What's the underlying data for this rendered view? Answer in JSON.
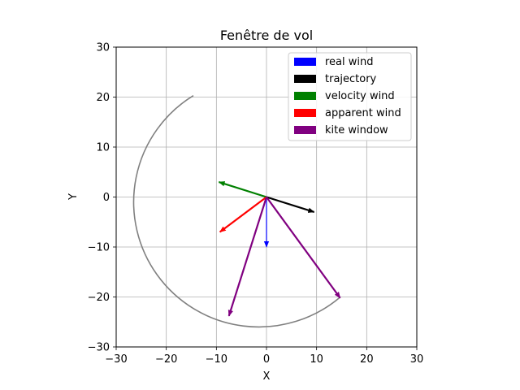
{
  "chart_data": {
    "type": "line",
    "title": "Fenêtre de vol",
    "xlabel": "X",
    "ylabel": "Y",
    "xlim": [
      -30,
      30
    ],
    "ylim": [
      -30,
      30
    ],
    "xticks": [
      -30,
      -20,
      -10,
      0,
      10,
      20,
      30
    ],
    "yticks": [
      -30,
      -20,
      -10,
      0,
      10,
      20,
      30
    ],
    "xtick_labels": [
      "−30",
      "−20",
      "−10",
      "0",
      "10",
      "20",
      "30"
    ],
    "ytick_labels": [
      "−30",
      "−20",
      "−10",
      "0",
      "10",
      "20",
      "30"
    ],
    "grid": true,
    "legend_position": "top-right",
    "arc": {
      "color": "#808080",
      "center": [
        0,
        0
      ],
      "radius": 25,
      "start": [
        14.5,
        -20.2
      ],
      "end": [
        -14.6,
        20.3
      ]
    },
    "series": [
      {
        "name": "real wind",
        "color": "#0000ff",
        "vectors": [
          {
            "from": [
              0,
              0
            ],
            "to": [
              0,
              -10
            ]
          }
        ]
      },
      {
        "name": "trajectory",
        "color": "#000000",
        "vectors": [
          {
            "from": [
              0,
              0
            ],
            "to": [
              9.5,
              -3
            ]
          }
        ]
      },
      {
        "name": "velocity wind",
        "color": "#008000",
        "vectors": [
          {
            "from": [
              0,
              0
            ],
            "to": [
              -9.5,
              3
            ]
          }
        ]
      },
      {
        "name": "apparent wind",
        "color": "#ff0000",
        "vectors": [
          {
            "from": [
              0,
              0
            ],
            "to": [
              -9.3,
              -7
            ]
          }
        ]
      },
      {
        "name": "kite window",
        "color": "#800080",
        "vectors": [
          {
            "from": [
              0,
              0
            ],
            "to": [
              -7.5,
              -23.8
            ]
          },
          {
            "from": [
              0,
              0
            ],
            "to": [
              14.7,
              -20.2
            ]
          }
        ]
      }
    ]
  }
}
